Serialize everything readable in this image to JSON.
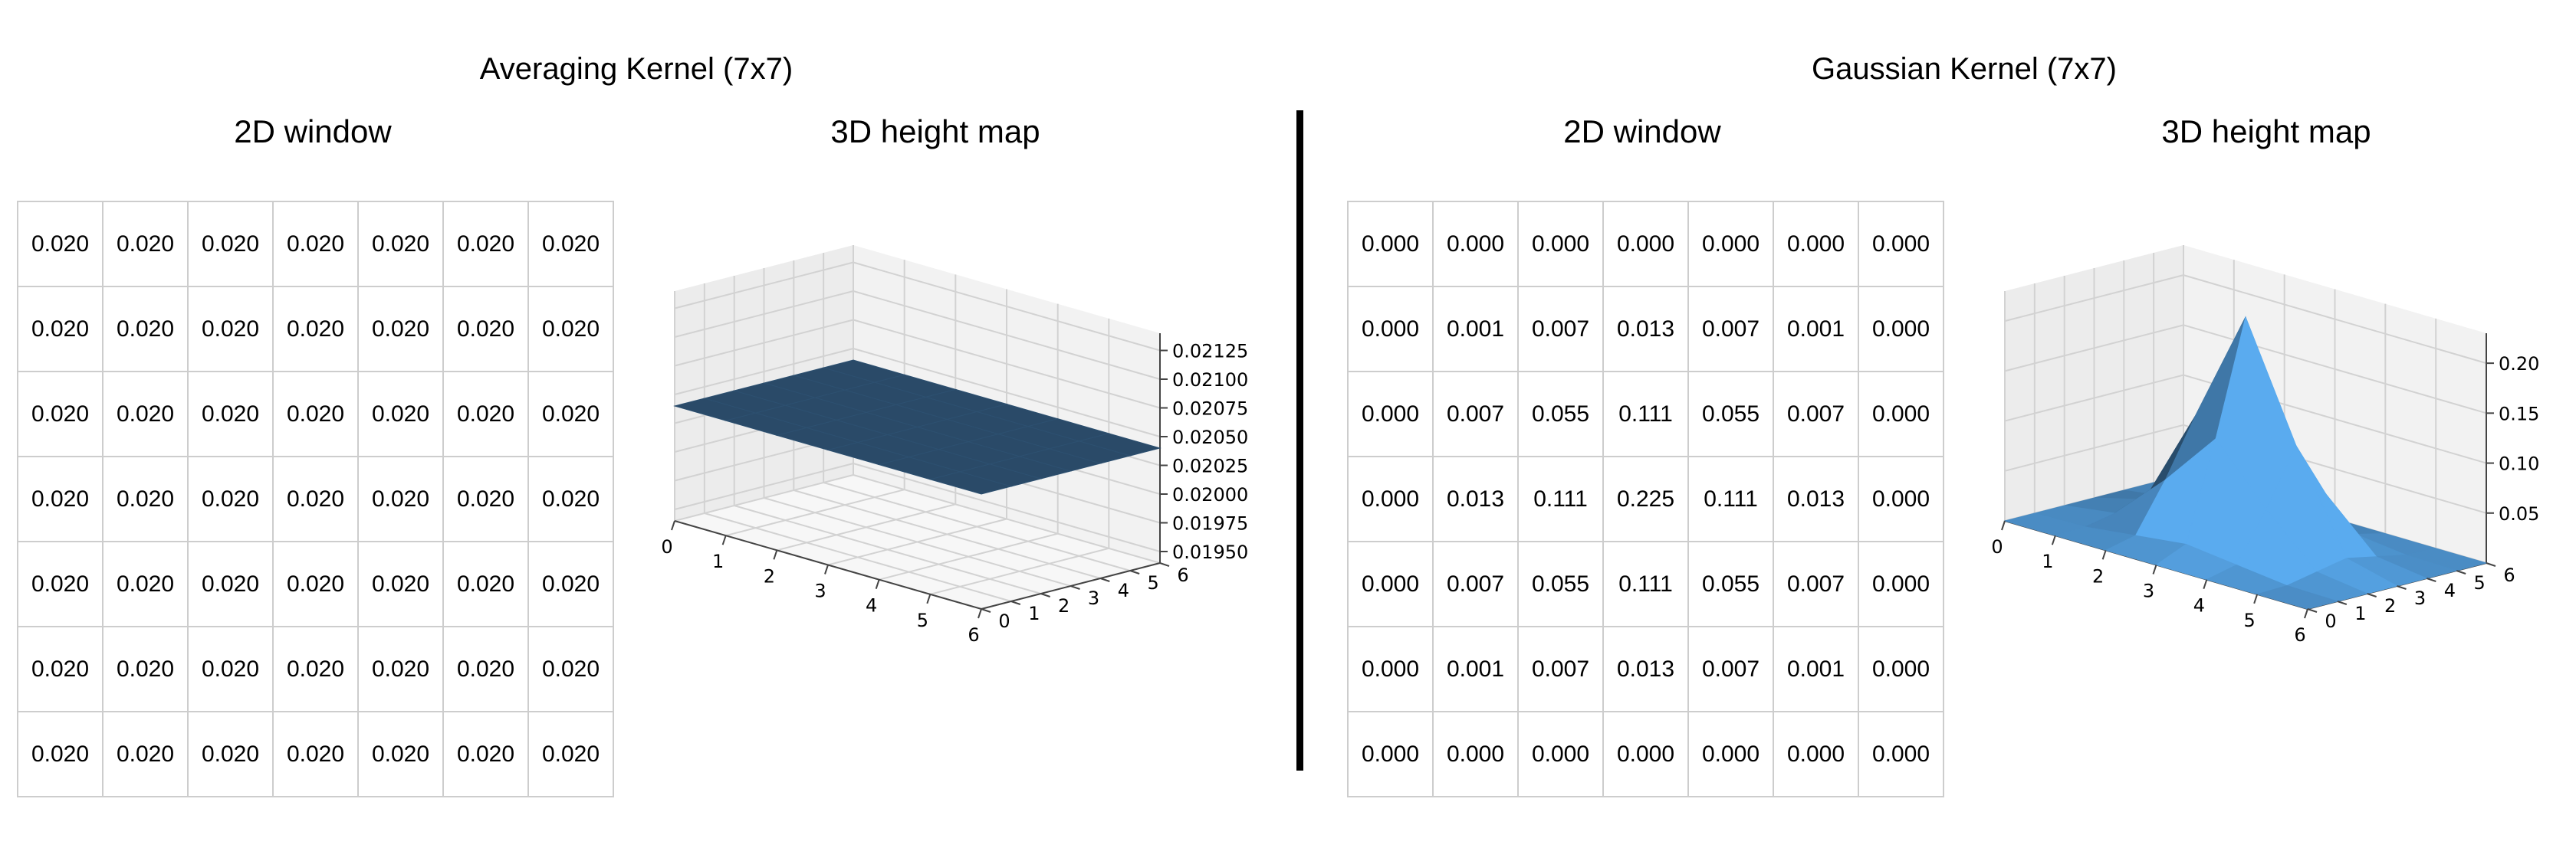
{
  "panels": [
    {
      "title": "Averaging Kernel (7x7)",
      "window_title": "2D window",
      "height_title": "3D height map"
    },
    {
      "title": "Gaussian Kernel (7x7)",
      "window_title": "2D window",
      "height_title": "3D height map"
    }
  ],
  "chart_data": [
    {
      "type": "table",
      "title": "2D window",
      "cells": [
        [
          "0.020",
          "0.020",
          "0.020",
          "0.020",
          "0.020",
          "0.020",
          "0.020"
        ],
        [
          "0.020",
          "0.020",
          "0.020",
          "0.020",
          "0.020",
          "0.020",
          "0.020"
        ],
        [
          "0.020",
          "0.020",
          "0.020",
          "0.020",
          "0.020",
          "0.020",
          "0.020"
        ],
        [
          "0.020",
          "0.020",
          "0.020",
          "0.020",
          "0.020",
          "0.020",
          "0.020"
        ],
        [
          "0.020",
          "0.020",
          "0.020",
          "0.020",
          "0.020",
          "0.020",
          "0.020"
        ],
        [
          "0.020",
          "0.020",
          "0.020",
          "0.020",
          "0.020",
          "0.020",
          "0.020"
        ],
        [
          "0.020",
          "0.020",
          "0.020",
          "0.020",
          "0.020",
          "0.020",
          "0.020"
        ]
      ]
    },
    {
      "type": "surface",
      "title": "3D height map",
      "x_ticks": [
        "0",
        "1",
        "2",
        "3",
        "4",
        "5",
        "6"
      ],
      "y_ticks": [
        "0",
        "1",
        "2",
        "3",
        "4",
        "5",
        "6"
      ],
      "z_ticks": [
        "0.01950",
        "0.01975",
        "0.02000",
        "0.02025",
        "0.02050",
        "0.02075",
        "0.02100",
        "0.02125"
      ],
      "zlim": [
        0.0194,
        0.0214
      ],
      "color": "#2a4a68",
      "z": [
        [
          0.0204,
          0.0204,
          0.0204,
          0.0204,
          0.0204,
          0.0204,
          0.0204
        ],
        [
          0.0204,
          0.0204,
          0.0204,
          0.0204,
          0.0204,
          0.0204,
          0.0204
        ],
        [
          0.0204,
          0.0204,
          0.0204,
          0.0204,
          0.0204,
          0.0204,
          0.0204
        ],
        [
          0.0204,
          0.0204,
          0.0204,
          0.0204,
          0.0204,
          0.0204,
          0.0204
        ],
        [
          0.0204,
          0.0204,
          0.0204,
          0.0204,
          0.0204,
          0.0204,
          0.0204
        ],
        [
          0.0204,
          0.0204,
          0.0204,
          0.0204,
          0.0204,
          0.0204,
          0.0204
        ],
        [
          0.0204,
          0.0204,
          0.0204,
          0.0204,
          0.0204,
          0.0204,
          0.0204
        ]
      ]
    },
    {
      "type": "table",
      "title": "2D window",
      "cells": [
        [
          "0.000",
          "0.000",
          "0.000",
          "0.000",
          "0.000",
          "0.000",
          "0.000"
        ],
        [
          "0.000",
          "0.001",
          "0.007",
          "0.013",
          "0.007",
          "0.001",
          "0.000"
        ],
        [
          "0.000",
          "0.007",
          "0.055",
          "0.111",
          "0.055",
          "0.007",
          "0.000"
        ],
        [
          "0.000",
          "0.013",
          "0.111",
          "0.225",
          "0.111",
          "0.013",
          "0.000"
        ],
        [
          "0.000",
          "0.007",
          "0.055",
          "0.111",
          "0.055",
          "0.007",
          "0.000"
        ],
        [
          "0.000",
          "0.001",
          "0.007",
          "0.013",
          "0.007",
          "0.001",
          "0.000"
        ],
        [
          "0.000",
          "0.000",
          "0.000",
          "0.000",
          "0.000",
          "0.000",
          "0.000"
        ]
      ]
    },
    {
      "type": "surface",
      "title": "3D height map",
      "x_ticks": [
        "0",
        "1",
        "2",
        "3",
        "4",
        "5",
        "6"
      ],
      "y_ticks": [
        "0",
        "1",
        "2",
        "3",
        "4",
        "5",
        "6"
      ],
      "z_ticks": [
        "0.05",
        "0.10",
        "0.15",
        "0.20"
      ],
      "zlim": [
        0.0,
        0.23
      ],
      "color": "#4a8cc4",
      "z": [
        [
          0.0,
          0.0,
          0.0,
          0.0,
          0.0,
          0.0,
          0.0
        ],
        [
          0.0,
          0.001,
          0.007,
          0.013,
          0.007,
          0.001,
          0.0
        ],
        [
          0.0,
          0.007,
          0.055,
          0.111,
          0.055,
          0.007,
          0.0
        ],
        [
          0.0,
          0.013,
          0.111,
          0.225,
          0.111,
          0.013,
          0.0
        ],
        [
          0.0,
          0.007,
          0.055,
          0.111,
          0.055,
          0.007,
          0.0
        ],
        [
          0.0,
          0.001,
          0.007,
          0.013,
          0.007,
          0.001,
          0.0
        ],
        [
          0.0,
          0.0,
          0.0,
          0.0,
          0.0,
          0.0,
          0.0
        ]
      ]
    }
  ]
}
